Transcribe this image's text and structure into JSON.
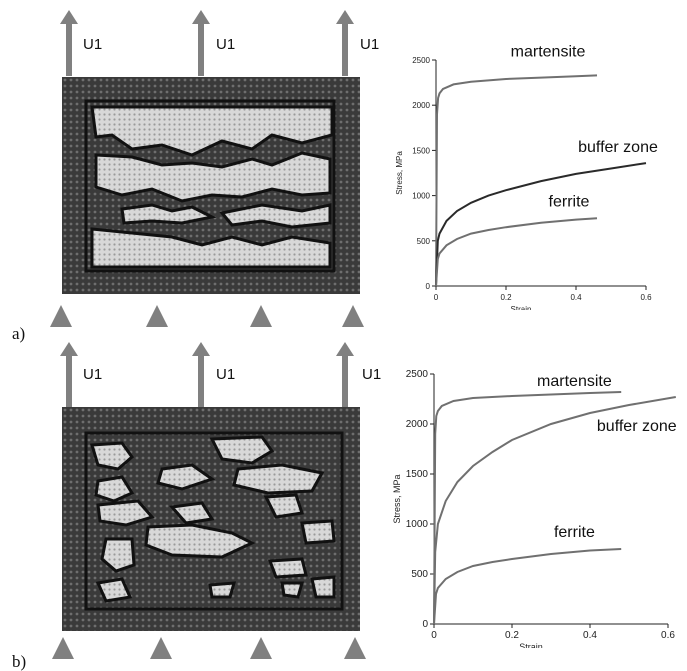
{
  "colors": {
    "arrow": "#808080",
    "support": "#808080",
    "mesh_dark": "#2a2a2a",
    "mesh_light": "#cfcfcf",
    "curve_gray": "#707070",
    "curve_dark": "#2a2a2a",
    "axis": "#222222"
  },
  "icons": {
    "load_arrow": "up-arrow",
    "support": "triangle-support"
  },
  "panels": [
    {
      "tag": "a)",
      "arrow_labels": [
        "U1",
        "U1",
        "U1"
      ]
    },
    {
      "tag": "b)",
      "arrow_labels": [
        "U1",
        "U1",
        "U1"
      ]
    }
  ],
  "chart_data": [
    {
      "type": "line",
      "xlabel": "Strain",
      "ylabel": "Stress, MPa",
      "xlim": [
        0,
        0.6
      ],
      "ylim": [
        0,
        2500
      ],
      "xticks": [
        "0",
        "0.2",
        "0.4",
        "0.6"
      ],
      "yticks": [
        "0",
        "500",
        "1000",
        "1500",
        "2000",
        "2500"
      ],
      "series": [
        {
          "name": "martensite",
          "color": "#707070",
          "x": [
            0,
            0.003,
            0.006,
            0.01,
            0.02,
            0.05,
            0.1,
            0.2,
            0.3,
            0.4,
            0.46
          ],
          "y": [
            0,
            1900,
            2080,
            2130,
            2180,
            2230,
            2260,
            2290,
            2305,
            2320,
            2330
          ]
        },
        {
          "name": "buffer zone",
          "color": "#2a2a2a",
          "x": [
            0,
            0.005,
            0.01,
            0.03,
            0.06,
            0.1,
            0.15,
            0.2,
            0.3,
            0.4,
            0.5,
            0.6
          ],
          "y": [
            0,
            500,
            580,
            720,
            830,
            920,
            1000,
            1060,
            1160,
            1240,
            1300,
            1360
          ]
        },
        {
          "name": "ferrite",
          "color": "#707070",
          "x": [
            0,
            0.005,
            0.01,
            0.03,
            0.06,
            0.1,
            0.15,
            0.2,
            0.3,
            0.4,
            0.46
          ],
          "y": [
            0,
            300,
            360,
            450,
            520,
            580,
            620,
            650,
            700,
            735,
            750
          ]
        }
      ]
    },
    {
      "type": "line",
      "xlabel": "Strain",
      "ylabel": "Stress, MPa",
      "xlim": [
        0,
        0.6
      ],
      "ylim": [
        0,
        2500
      ],
      "xticks": [
        "0",
        "0.2",
        "0.4",
        "0.6"
      ],
      "yticks": [
        "0",
        "500",
        "1000",
        "1500",
        "2000",
        "2500"
      ],
      "series": [
        {
          "name": "martensite",
          "color": "#707070",
          "x": [
            0,
            0.003,
            0.006,
            0.01,
            0.02,
            0.05,
            0.1,
            0.2,
            0.3,
            0.4,
            0.48
          ],
          "y": [
            0,
            1900,
            2080,
            2130,
            2180,
            2230,
            2260,
            2280,
            2295,
            2310,
            2320
          ]
        },
        {
          "name": "buffer zone",
          "color": "#707070",
          "x": [
            0,
            0.003,
            0.01,
            0.03,
            0.06,
            0.1,
            0.15,
            0.2,
            0.3,
            0.4,
            0.5,
            0.62
          ],
          "y": [
            0,
            720,
            1000,
            1230,
            1420,
            1580,
            1720,
            1840,
            2000,
            2110,
            2190,
            2270
          ]
        },
        {
          "name": "ferrite",
          "color": "#707070",
          "x": [
            0,
            0.005,
            0.01,
            0.03,
            0.06,
            0.1,
            0.15,
            0.2,
            0.3,
            0.4,
            0.48
          ],
          "y": [
            0,
            300,
            360,
            450,
            520,
            580,
            620,
            650,
            700,
            735,
            750
          ]
        }
      ]
    }
  ]
}
